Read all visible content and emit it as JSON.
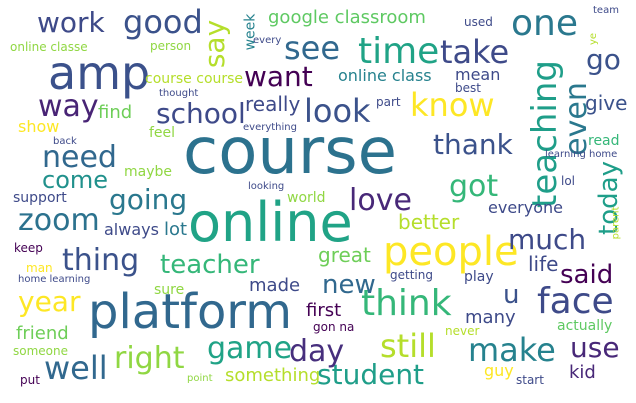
{
  "palette": {
    "purple": "#440154",
    "indigo": "#3e4a89",
    "blue": "#31688e",
    "teal": "#26828e",
    "green": "#1f9e89",
    "mint": "#35b779",
    "lime": "#6ece58",
    "yellowgreen": "#b5de2b",
    "yellow": "#fde725"
  },
  "words": [
    {
      "text": "course",
      "color": "#2c728e"
    },
    {
      "text": "platform",
      "color": "#31688e"
    },
    {
      "text": "online",
      "color": "#20a386"
    },
    {
      "text": "amp",
      "color": "#3b518b"
    },
    {
      "text": "people",
      "color": "#fde725"
    },
    {
      "text": "teaching",
      "color": "#1f9e89"
    },
    {
      "text": "one",
      "color": "#2a788e"
    },
    {
      "text": "time",
      "color": "#20a386"
    },
    {
      "text": "know",
      "color": "#fde725"
    },
    {
      "text": "think",
      "color": "#35b779"
    },
    {
      "text": "face",
      "color": "#3e4a89"
    },
    {
      "text": "make",
      "color": "#26828e"
    },
    {
      "text": "still",
      "color": "#b5de2b"
    },
    {
      "text": "student",
      "color": "#1f9e89"
    },
    {
      "text": "day",
      "color": "#472f7d"
    },
    {
      "text": "game",
      "color": "#20a386"
    },
    {
      "text": "right",
      "color": "#90d743"
    },
    {
      "text": "well",
      "color": "#31688e"
    },
    {
      "text": "year",
      "color": "#fde725"
    },
    {
      "text": "teacher",
      "color": "#35b779"
    },
    {
      "text": "thing",
      "color": "#3b528b"
    },
    {
      "text": "zoom",
      "color": "#2c728e"
    },
    {
      "text": "going",
      "color": "#2a788e"
    },
    {
      "text": "need",
      "color": "#31688e"
    },
    {
      "text": "come",
      "color": "#21918c"
    },
    {
      "text": "look",
      "color": "#3b528b"
    },
    {
      "text": "school",
      "color": "#3e4a89"
    },
    {
      "text": "way",
      "color": "#482475"
    },
    {
      "text": "want",
      "color": "#440154"
    },
    {
      "text": "see",
      "color": "#31688e"
    },
    {
      "text": "take",
      "color": "#3e4a89"
    },
    {
      "text": "good",
      "color": "#3b528b"
    },
    {
      "text": "work",
      "color": "#3e4a89"
    },
    {
      "text": "say",
      "color": "#b5de2b"
    },
    {
      "text": "even",
      "color": "#2a788e"
    },
    {
      "text": "go",
      "color": "#3b528b"
    },
    {
      "text": "thank",
      "color": "#3b528b"
    },
    {
      "text": "got",
      "color": "#35b779"
    },
    {
      "text": "love",
      "color": "#482878"
    },
    {
      "text": "much",
      "color": "#3e4a89"
    },
    {
      "text": "today",
      "color": "#1f9e89"
    },
    {
      "text": "said",
      "color": "#440154"
    },
    {
      "text": "use",
      "color": "#482878"
    },
    {
      "text": "new",
      "color": "#31688e"
    },
    {
      "text": "u",
      "color": "#3b528b"
    },
    {
      "text": "google classroom",
      "color": "#5ec962"
    },
    {
      "text": "online class",
      "color": "#26828e"
    },
    {
      "text": "mean",
      "color": "#3e4a89"
    },
    {
      "text": "give",
      "color": "#3b528b"
    },
    {
      "text": "really",
      "color": "#3e4a89"
    },
    {
      "text": "better",
      "color": "#b5de2b"
    },
    {
      "text": "everyone",
      "color": "#3e4a89"
    },
    {
      "text": "great",
      "color": "#6ece58"
    },
    {
      "text": "life",
      "color": "#3e4a89"
    },
    {
      "text": "made",
      "color": "#3e4a89"
    },
    {
      "text": "first",
      "color": "#440154"
    },
    {
      "text": "many",
      "color": "#3e4a89"
    },
    {
      "text": "friend",
      "color": "#6ece58"
    },
    {
      "text": "something",
      "color": "#b5de2b"
    },
    {
      "text": "guy",
      "color": "#fde725"
    },
    {
      "text": "kid",
      "color": "#482878"
    },
    {
      "text": "actually",
      "color": "#5ec962"
    },
    {
      "text": "lot",
      "color": "#2a788e"
    },
    {
      "text": "always",
      "color": "#3e4a89"
    },
    {
      "text": "find",
      "color": "#6ece58"
    },
    {
      "text": "feel",
      "color": "#90d743"
    },
    {
      "text": "show",
      "color": "#fde725"
    },
    {
      "text": "support",
      "color": "#3e4a89"
    },
    {
      "text": "maybe",
      "color": "#90d743"
    },
    {
      "text": "sure",
      "color": "#90d743"
    },
    {
      "text": "world",
      "color": "#90d743"
    },
    {
      "text": "play",
      "color": "#3e4a89"
    },
    {
      "text": "getting",
      "color": "#3e4a89"
    },
    {
      "text": "never",
      "color": "#b5de2b"
    },
    {
      "text": "start",
      "color": "#3e4a89"
    },
    {
      "text": "gon na",
      "color": "#440154"
    },
    {
      "text": "course course",
      "color": "#b5de2b"
    },
    {
      "text": "online classe",
      "color": "#90d743"
    },
    {
      "text": "person",
      "color": "#90d743"
    },
    {
      "text": "week",
      "color": "#26828e"
    },
    {
      "text": "every",
      "color": "#3e4a89"
    },
    {
      "text": "used",
      "color": "#3e4a89"
    },
    {
      "text": "team",
      "color": "#3e4a89"
    },
    {
      "text": "ye",
      "color": "#b5de2b"
    },
    {
      "text": "thought",
      "color": "#3e4a89"
    },
    {
      "text": "part",
      "color": "#3e4a89"
    },
    {
      "text": "best",
      "color": "#3e4a89"
    },
    {
      "text": "read",
      "color": "#35b779"
    },
    {
      "text": "learning home",
      "color": "#3e4a89"
    },
    {
      "text": "everything",
      "color": "#3e4a89"
    },
    {
      "text": "back",
      "color": "#3e4a89"
    },
    {
      "text": "lol",
      "color": "#3e4a89"
    },
    {
      "text": "looking",
      "color": "#3e4a89"
    },
    {
      "text": "parent",
      "color": "#b5de2b"
    },
    {
      "text": "keep",
      "color": "#440154"
    },
    {
      "text": "man",
      "color": "#fde725"
    },
    {
      "text": "home learning",
      "color": "#3e4a89"
    },
    {
      "text": "someone",
      "color": "#90d743"
    },
    {
      "text": "put",
      "color": "#440154"
    },
    {
      "text": "point",
      "color": "#90d743"
    }
  ]
}
